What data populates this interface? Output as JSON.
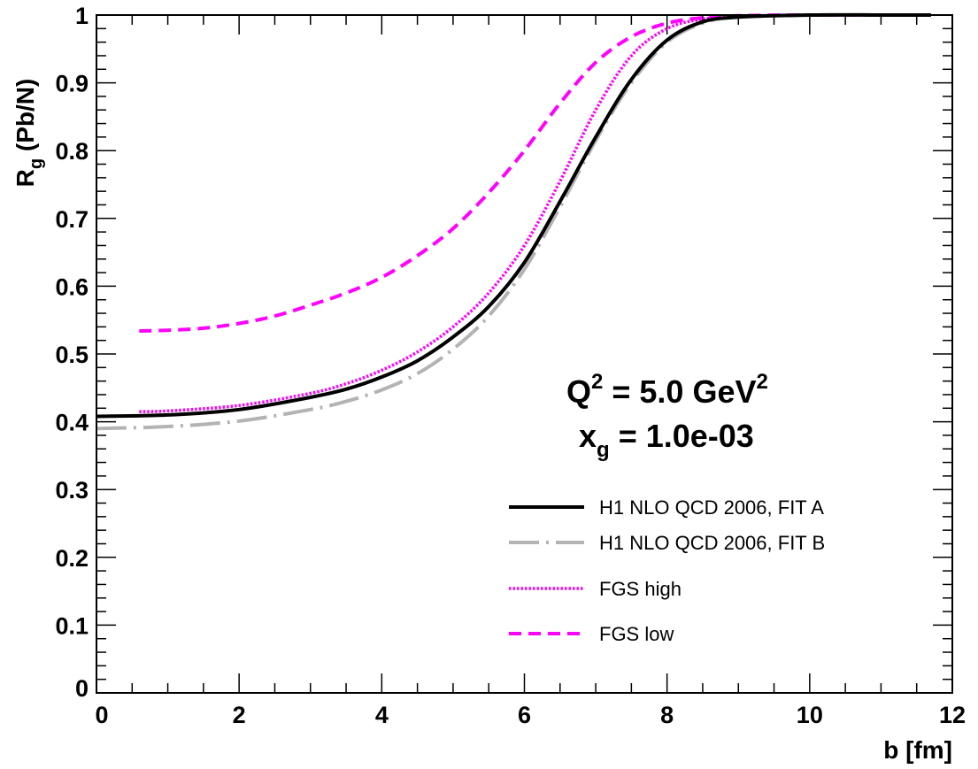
{
  "chart_data": {
    "type": "line",
    "xlabel": "b [fm]",
    "ylabel": {
      "base": "R",
      "sub": "g",
      "rest": " (Pb/N)"
    },
    "xlim": [
      0,
      12
    ],
    "ylim": [
      0,
      1
    ],
    "x_ticks": [
      "0",
      "2",
      "4",
      "6",
      "8",
      "10",
      "12"
    ],
    "y_ticks": [
      "0",
      "0.1",
      "0.2",
      "0.3",
      "0.4",
      "0.5",
      "0.6",
      "0.7",
      "0.8",
      "0.9",
      "1"
    ],
    "grid": false,
    "legend_position": "bottom-right",
    "annotations": {
      "q2": {
        "prefix": "Q",
        "sup1": "2",
        "middle": " = 5.0 GeV",
        "sup2": "2"
      },
      "xg": {
        "prefix": "x",
        "sub": "g",
        "rest": " = 1.0e-03"
      }
    },
    "series": [
      {
        "name": "H1 NLO QCD 2006, FIT A",
        "color": "#000000",
        "style": "solid",
        "x": [
          0,
          1,
          2,
          3,
          3.5,
          4,
          4.5,
          5,
          5.5,
          6,
          6.5,
          7,
          7.5,
          8,
          8.5,
          9,
          10,
          11,
          11.7
        ],
        "y": [
          0.408,
          0.41,
          0.418,
          0.436,
          0.448,
          0.466,
          0.49,
          0.525,
          0.57,
          0.635,
          0.725,
          0.82,
          0.905,
          0.963,
          0.99,
          0.997,
          1.0,
          1.0,
          1.0
        ]
      },
      {
        "name": "H1 NLO QCD 2006, FIT B",
        "color": "#b3b3b3",
        "style": "dash-dot",
        "x": [
          0,
          1,
          2,
          3,
          3.5,
          4,
          4.5,
          5,
          5.5,
          6,
          6.5,
          7,
          7.5,
          8,
          8.5,
          9,
          10,
          11,
          11.7
        ],
        "y": [
          0.39,
          0.393,
          0.401,
          0.418,
          0.43,
          0.447,
          0.471,
          0.507,
          0.556,
          0.625,
          0.717,
          0.815,
          0.9,
          0.96,
          0.988,
          0.997,
          1.0,
          1.0,
          1.0
        ]
      },
      {
        "name": "FGS high",
        "color": "#ff00ff",
        "style": "dotted",
        "x": [
          0.6,
          1,
          2,
          3,
          3.5,
          4,
          4.5,
          5,
          5.5,
          6,
          6.5,
          7,
          7.5,
          8,
          8.5,
          9,
          10,
          11,
          11.7
        ],
        "y": [
          0.415,
          0.416,
          0.424,
          0.442,
          0.456,
          0.476,
          0.503,
          0.54,
          0.59,
          0.66,
          0.755,
          0.86,
          0.94,
          0.98,
          0.994,
          0.998,
          1.0,
          1.0,
          1.0
        ]
      },
      {
        "name": "FGS low",
        "color": "#ff00ff",
        "style": "dashed",
        "x": [
          0.6,
          1,
          1.5,
          2,
          2.5,
          3,
          3.5,
          4,
          4.5,
          5,
          5.5,
          6,
          6.5,
          7,
          7.5,
          8,
          8.5,
          9,
          10,
          11,
          11.7
        ],
        "y": [
          0.534,
          0.535,
          0.538,
          0.545,
          0.556,
          0.572,
          0.59,
          0.613,
          0.645,
          0.685,
          0.738,
          0.8,
          0.87,
          0.93,
          0.968,
          0.988,
          0.996,
          0.999,
          1.0,
          1.0,
          1.0
        ]
      }
    ]
  }
}
